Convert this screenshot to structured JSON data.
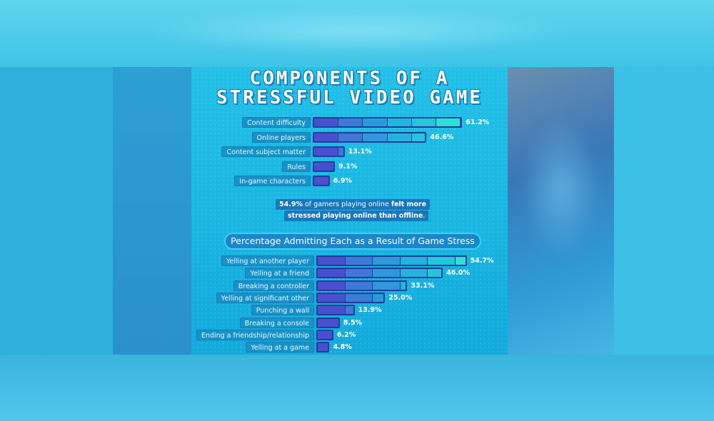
{
  "colors": {
    "bar_border": "#1c3f9a",
    "segments": [
      "#4a4fd0",
      "#3f78d6",
      "#2f98dc",
      "#27b2dd",
      "#22c7dc",
      "#2fe0d8"
    ],
    "label_bg": "#1891c8",
    "panel_bg": "#19b5e2"
  },
  "chart_data": [
    {
      "type": "bar",
      "orientation": "horizontal",
      "title": "COMPONENTS OF A STRESSFUL VIDEO GAME",
      "title_lines": [
        "COMPONENTS OF A",
        "STRESSFUL VIDEO GAME"
      ],
      "unit": "%",
      "categories": [
        "Content difficulty",
        "Online players",
        "Content subject matter",
        "Rules",
        "In-game characters"
      ],
      "values": [
        61.2,
        46.6,
        13.1,
        9.1,
        6.9
      ],
      "value_labels": [
        "61.2%",
        "46.6%",
        "13.1%",
        "9.1%",
        "6.9%"
      ]
    },
    {
      "type": "bar",
      "orientation": "horizontal",
      "title": "Percentage Admitting Each as a Result of Game Stress",
      "unit": "%",
      "categories": [
        "Yelling at another player",
        "Yelling at a friend",
        "Breaking a controller",
        "Yelling at significant other",
        "Punching a wall",
        "Breaking a console",
        "Ending a friendship/relationship",
        "Yelling at a game"
      ],
      "values": [
        54.7,
        46.0,
        33.1,
        25.0,
        13.9,
        8.5,
        6.2,
        4.8
      ],
      "value_labels": [
        "54.7%",
        "46.0%",
        "33.1%",
        "25.0%",
        "13.9%",
        "8.5%",
        "6.2%",
        "4.8%"
      ]
    }
  ],
  "callout": {
    "line1_bold_start": "54.9%",
    "line1_text": " of gamers playing online ",
    "line1_bold_end": "felt more",
    "line2_bold": "stressed playing online than offline",
    "line2_end": "."
  }
}
